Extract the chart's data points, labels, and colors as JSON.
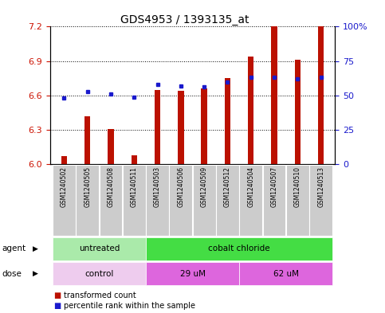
{
  "title": "GDS4953 / 1393135_at",
  "samples": [
    "GSM1240502",
    "GSM1240505",
    "GSM1240508",
    "GSM1240511",
    "GSM1240503",
    "GSM1240506",
    "GSM1240509",
    "GSM1240512",
    "GSM1240504",
    "GSM1240507",
    "GSM1240510",
    "GSM1240513"
  ],
  "transformed_count": [
    6.07,
    6.42,
    6.31,
    6.08,
    6.65,
    6.64,
    6.66,
    6.75,
    6.94,
    7.2,
    6.91,
    7.2
  ],
  "percentile_rank": [
    48,
    53,
    51,
    49,
    58,
    57,
    56,
    60,
    63,
    63,
    62,
    63
  ],
  "ylim_left": [
    6.0,
    7.2
  ],
  "ylim_right": [
    0,
    100
  ],
  "yticks_left": [
    6.0,
    6.3,
    6.6,
    6.9,
    7.2
  ],
  "yticks_right": [
    0,
    25,
    50,
    75,
    100
  ],
  "ytick_labels_right": [
    "0",
    "25",
    "50",
    "75",
    "100%"
  ],
  "bar_color": "#bb1100",
  "dot_color": "#1a1acc",
  "bar_bottom": 6.0,
  "bar_width": 0.25,
  "agent_labels": [
    {
      "label": "untreated",
      "start": 0,
      "end": 4,
      "color": "#aaeaaa"
    },
    {
      "label": "cobalt chloride",
      "start": 4,
      "end": 12,
      "color": "#44dd44"
    }
  ],
  "dose_labels": [
    {
      "label": "control",
      "start": 0,
      "end": 4,
      "color": "#eeccee"
    },
    {
      "label": "29 uM",
      "start": 4,
      "end": 8,
      "color": "#dd66dd"
    },
    {
      "label": "62 uM",
      "start": 8,
      "end": 12,
      "color": "#dd66dd"
    }
  ],
  "legend_bar_label": "transformed count",
  "legend_dot_label": "percentile rank within the sample",
  "bg_color": "#ffffff",
  "plot_bg": "#ffffff",
  "tick_label_color_left": "#cc1100",
  "tick_label_color_right": "#1a1acc",
  "grid_color": "#000000",
  "xticklabel_bg": "#cccccc",
  "title_fontsize": 10,
  "axis_fontsize": 8,
  "label_fontsize": 7.5
}
